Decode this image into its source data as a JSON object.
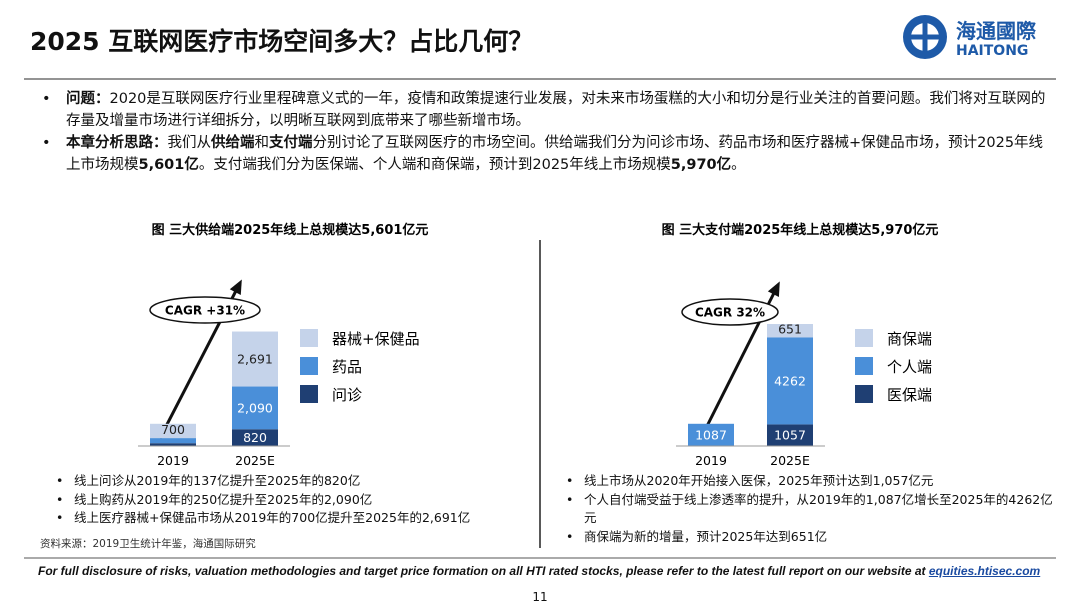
{
  "header": {
    "title": "2025 互联网医疗市场空间多大？占比几何？"
  },
  "logo": {
    "name": "海通國際",
    "latin": "HAITONG"
  },
  "bullets": [
    [
      {
        "text": "问题：",
        "bold": true
      },
      {
        "text": "2020是互联网医疗行业里程碑意义式的一年，疫情和政策提速行业发展，对未来市场蛋糕的大小和切分是行业关注的首要问题。我们将对互联网的存量及增量市场进行详细拆分，以明晰互联网到底带来了哪些新增市场。",
        "bold": false
      }
    ],
    [
      {
        "text": "本章分析思路：",
        "bold": true
      },
      {
        "text": "我们从",
        "bold": false
      },
      {
        "text": "供给端",
        "bold": true
      },
      {
        "text": "和",
        "bold": false
      },
      {
        "text": "支付端",
        "bold": true
      },
      {
        "text": "分别讨论了互联网医疗的市场空间。供给端我们分为问诊市场、药品市场和医疗器械+保健品市场，预计2025年线上市场规模",
        "bold": false
      },
      {
        "text": "5,601亿",
        "bold": true
      },
      {
        "text": "。支付端我们分为医保端、个人端和商保端，预计到2025年线上市场规模",
        "bold": false
      },
      {
        "text": "5,970亿",
        "bold": true
      },
      {
        "text": "。",
        "bold": false
      }
    ]
  ],
  "chart_data": [
    {
      "type": "stacked_bar",
      "title": "图 三大供给端2025年线上总规模达5,601亿元",
      "annotation": "CAGR +31%",
      "categories": [
        "2019",
        "2025E"
      ],
      "series": [
        {
          "name": "问诊",
          "color": "#1f3f73",
          "values": [
            137,
            820
          ],
          "value_labels": [
            null,
            "820"
          ]
        },
        {
          "name": "药品",
          "color": "#4a8fd9",
          "values": [
            250,
            2090
          ],
          "value_labels": [
            null,
            "2,090"
          ]
        },
        {
          "name": "器械+保健品",
          "color": "#c5d3ea",
          "values": [
            700,
            2691
          ],
          "value_labels": [
            "700",
            "2,691"
          ]
        }
      ],
      "notes": [
        "线上问诊从2019年的137亿提升至2025年的820亿",
        "线上购药从2019年的250亿提升至2025年的2,090亿",
        "线上医疗器械+保健品市场从2019年的700亿提升至2025年的2,691亿"
      ]
    },
    {
      "type": "stacked_bar",
      "title": "图 三大支付端2025年线上总规模达5,970亿元",
      "annotation": "CAGR 32%",
      "categories": [
        "2019",
        "2025E"
      ],
      "series": [
        {
          "name": "医保端",
          "color": "#1f3f73",
          "values": [
            null,
            1057
          ]
        },
        {
          "name": "个人端",
          "color": "#4a8fd9",
          "values": [
            1087,
            4262
          ]
        },
        {
          "name": "商保端",
          "color": "#c5d3ea",
          "values": [
            null,
            651
          ]
        }
      ],
      "notes": [
        "线上市场从2020年开始接入医保，2025年预计达到1,057亿元",
        "个人自付端受益于线上渗透率的提升，从2019年的1,087亿增长至2025年的4262亿元",
        "商保端为新的增量，预计2025年达到651亿"
      ]
    }
  ],
  "source": "资料来源：2019卫生统计年鉴，海通国际研究",
  "footer": {
    "text": "For full disclosure of risks, valuation methodologies and target price formation on all HTI rated stocks, please refer to the latest full report on our website at ",
    "link": "equities.htisec.com"
  },
  "page": "11"
}
